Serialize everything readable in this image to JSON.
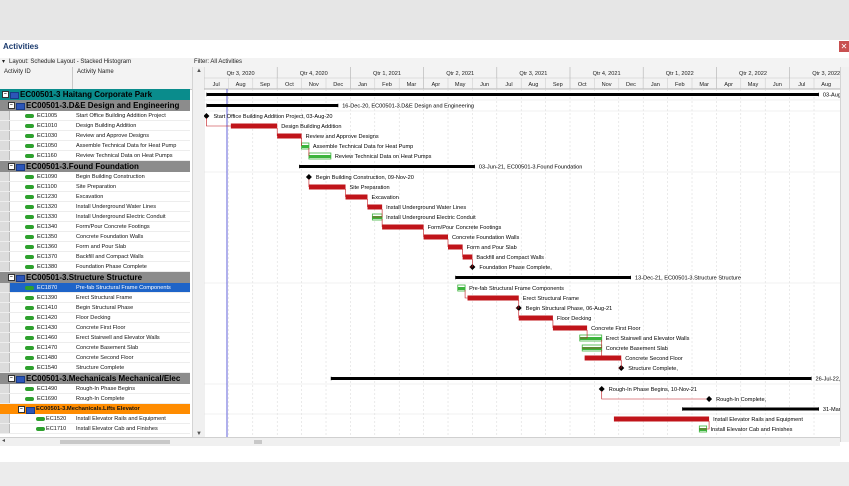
{
  "window": {
    "title": "Activities"
  },
  "filters": {
    "layout": "Layout: Schedule Layout - Stacked Histogram",
    "filter": "Filter: All Activities"
  },
  "columns": {
    "id": "Activity ID",
    "name": "Activity Name"
  },
  "timescale": {
    "quarters": [
      "Qtr 3, 2020",
      "Qtr 4, 2020",
      "Qtr 1, 2021",
      "Qtr 2, 2021",
      "Qtr 3, 2021",
      "Qtr 4, 2021",
      "Qtr 1, 2022",
      "Qtr 2, 2022",
      "Qtr 3, 2022"
    ],
    "months": [
      "Jul",
      "Aug",
      "Sep",
      "Oct",
      "Nov",
      "Dec",
      "Jan",
      "Feb",
      "Mar",
      "Apr",
      "May",
      "Jun",
      "Jul",
      "Aug",
      "Sep",
      "Oct",
      "Nov",
      "Dec",
      "Jan",
      "Feb",
      "Mar",
      "Apr",
      "May",
      "Jun",
      "Jul",
      "Aug"
    ]
  },
  "rows": [
    {
      "kind": "project",
      "label": "EC00501-3  Haitang Corporate Park",
      "bar_label": "03-Aug-"
    },
    {
      "kind": "wbs",
      "label": "EC00501-3.D&E  Design and Engineering",
      "bar_label": "16-Dec-20, EC00501-3.D&E  Design and Engineering"
    },
    {
      "kind": "act",
      "id": "EC1005",
      "name": "Start Office Building Addition Project",
      "bar_label": "Start Office Building Addition Project, 03-Aug-20"
    },
    {
      "kind": "act",
      "id": "EC1010",
      "name": "Design Building Addition",
      "bar_label": "Design Building Addition"
    },
    {
      "kind": "act",
      "id": "EC1030",
      "name": "Review and Approve Designs",
      "bar_label": "Review and Approve Designs"
    },
    {
      "kind": "act",
      "id": "EC1050",
      "name": "Assemble Technical Data for Heat Pump",
      "bar_label": "Assemble Technical Data for Heat Pump"
    },
    {
      "kind": "act",
      "id": "EC1160",
      "name": "Review Technical Data on Heat Pumps",
      "bar_label": "Review Technical Data on Heat Pumps"
    },
    {
      "kind": "wbs",
      "label": "EC00501-3.Found  Foundation",
      "bar_label": "03-Jun-21, EC00501-3.Found  Foundation"
    },
    {
      "kind": "act",
      "id": "EC1090",
      "name": "Begin Building Construction",
      "bar_label": "Begin Building Construction, 09-Nov-20"
    },
    {
      "kind": "act",
      "id": "EC1100",
      "name": "Site Preparation",
      "bar_label": "Site Preparation"
    },
    {
      "kind": "act",
      "id": "EC1230",
      "name": "Excavation",
      "bar_label": "Excavation"
    },
    {
      "kind": "act",
      "id": "EC1320",
      "name": "Install Underground Water Lines",
      "bar_label": "Install Underground Water Lines"
    },
    {
      "kind": "act",
      "id": "EC1330",
      "name": "Install Underground Electric Conduit",
      "bar_label": "Install Underground Electric Conduit"
    },
    {
      "kind": "act",
      "id": "EC1340",
      "name": "Form/Pour Concrete Footings",
      "bar_label": "Form/Pour Concrete Footings"
    },
    {
      "kind": "act",
      "id": "EC1350",
      "name": "Concrete Foundation Walls",
      "bar_label": "Concrete Foundation Walls"
    },
    {
      "kind": "act",
      "id": "EC1360",
      "name": "Form and Pour Slab",
      "bar_label": "Form and Pour Slab"
    },
    {
      "kind": "act",
      "id": "EC1370",
      "name": "Backfill and Compact Walls",
      "bar_label": "Backfill and Compact Walls"
    },
    {
      "kind": "act",
      "id": "EC1380",
      "name": "Foundation Phase Complete",
      "bar_label": "Foundation Phase Complete,"
    },
    {
      "kind": "wbs",
      "label": "EC00501-3.Structure  Structure",
      "bar_label": "13-Dec-21, EC00501-3.Structure  Structure"
    },
    {
      "kind": "act",
      "id": "EC1870",
      "name": "Pre-fab Structural Frame Components",
      "bar_label": "Pre-fab Structural Frame Components",
      "selected": true
    },
    {
      "kind": "act",
      "id": "EC1390",
      "name": "Erect Structural Frame",
      "bar_label": "Erect Structural Frame"
    },
    {
      "kind": "act",
      "id": "EC1410",
      "name": "Begin Structural Phase",
      "bar_label": "Begin Structural Phase, 06-Aug-21"
    },
    {
      "kind": "act",
      "id": "EC1420",
      "name": "Floor Decking",
      "bar_label": "Floor Decking"
    },
    {
      "kind": "act",
      "id": "EC1430",
      "name": "Concrete First Floor",
      "bar_label": "Concrete First Floor"
    },
    {
      "kind": "act",
      "id": "EC1460",
      "name": "Erect Stairwell and Elevator Walls",
      "bar_label": "Erect Stairwell and Elevator Walls"
    },
    {
      "kind": "act",
      "id": "EC1470",
      "name": "Concrete Basement Slab",
      "bar_label": "Concrete Basement Slab"
    },
    {
      "kind": "act",
      "id": "EC1480",
      "name": "Concrete Second Floor",
      "bar_label": "Concrete Second Floor"
    },
    {
      "kind": "act",
      "id": "EC1540",
      "name": "Structure Complete",
      "bar_label": "Structure Complete,"
    },
    {
      "kind": "wbs",
      "label": "EC00501-3.Mechanicals  Mechanical/Elec",
      "bar_label": "26-Jul-22,"
    },
    {
      "kind": "act",
      "id": "EC1490",
      "name": "Rough-In Phase Begins",
      "bar_label": "Rough-In Phase Begins, 10-Nov-21"
    },
    {
      "kind": "act",
      "id": "EC1690",
      "name": "Rough-In Complete",
      "bar_label": "Rough-In Complete,"
    },
    {
      "kind": "sub",
      "label": "EC00501-3.Mechanicals.Lifts  Elevator",
      "bar_label": "31-Mar-22, EC00501-3.Mechanicals.Lifts  Elev"
    },
    {
      "kind": "act2",
      "id": "EC1520",
      "name": "Install Elevator Rails and Equipment",
      "bar_label": "Install Elevator Rails and Equipment"
    },
    {
      "kind": "act2",
      "id": "EC1710",
      "name": "Install Elevator Cab and Finishes",
      "bar_label": "Install Elevator Cab and Finishes"
    }
  ],
  "colors": {
    "critical": "#c0141a",
    "noncritical": "#3cb43c",
    "project_band": "#0a8c8c",
    "wbs_band": "#8c8c8c",
    "sub_band": "#ff8c00",
    "selected": "#1e64c8",
    "summary": "#000000"
  }
}
